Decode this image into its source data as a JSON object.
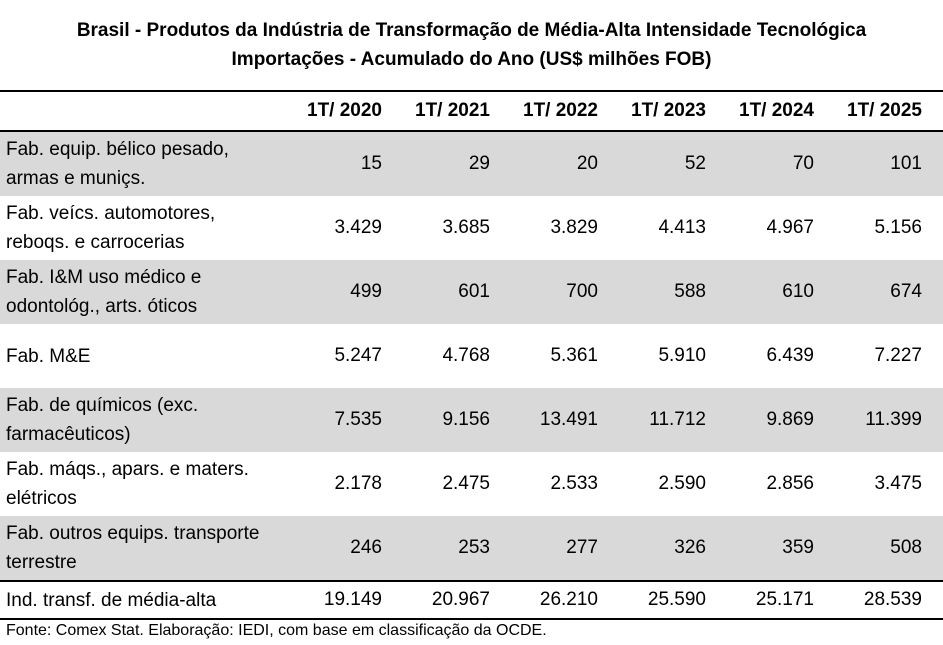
{
  "chart_data": {
    "type": "table",
    "title": "Brasil - Produtos da Indústria de Transformação de Média-Alta Intensidade Tecnológica",
    "subtitle": "Importações - Acumulado do Ano (US$ milhões FOB)",
    "columns": [
      "1T/ 2020",
      "1T/ 2021",
      "1T/ 2022",
      "1T/ 2023",
      "1T/ 2024",
      "1T/ 2025"
    ],
    "rows": [
      {
        "label": "Fab. equip. bélico pesado,\narmas e muniçs.",
        "values": [
          "15",
          "29",
          "20",
          "52",
          "70",
          "101"
        ]
      },
      {
        "label": "Fab. veícs. automotores,\nreboqs. e carrocerias",
        "values": [
          "3.429",
          "3.685",
          "3.829",
          "4.413",
          "4.967",
          "5.156"
        ]
      },
      {
        "label": "Fab. I&M uso médico e\nodontológ., arts. óticos",
        "values": [
          "499",
          "601",
          "700",
          "588",
          "610",
          "674"
        ]
      },
      {
        "label": "Fab. M&E",
        "values": [
          "5.247",
          "4.768",
          "5.361",
          "5.910",
          "6.439",
          "7.227"
        ]
      },
      {
        "label": "Fab. de químicos (exc.\nfarmacêuticos)",
        "values": [
          "7.535",
          "9.156",
          "13.491",
          "11.712",
          "9.869",
          "11.399"
        ]
      },
      {
        "label": "Fab. máqs., apars. e maters.\nelétricos",
        "values": [
          "2.178",
          "2.475",
          "2.533",
          "2.590",
          "2.856",
          "3.475"
        ]
      },
      {
        "label": "Fab. outros equips. transporte\nterrestre",
        "values": [
          "246",
          "253",
          "277",
          "326",
          "359",
          "508"
        ]
      }
    ],
    "total": {
      "label": "Ind. transf. de média-alta",
      "values": [
        "19.149",
        "20.967",
        "26.210",
        "25.590",
        "25.171",
        "28.539"
      ]
    },
    "source": "Fonte: Comex Stat. Elaboração: IEDI, com base em classificação da OCDE."
  },
  "colors": {
    "shade": "#d9d9d9",
    "rule": "#000000"
  }
}
